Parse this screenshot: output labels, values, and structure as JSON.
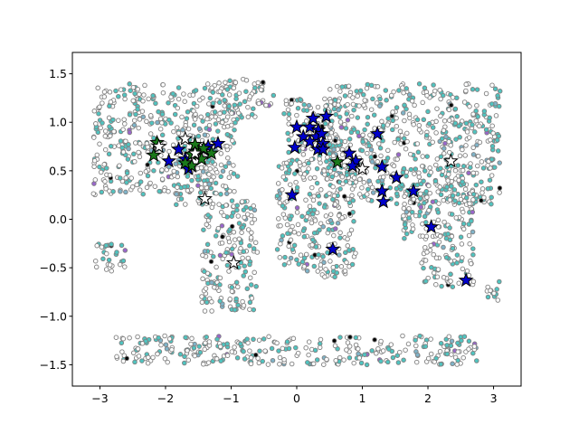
{
  "chart_data": {
    "type": "scatter",
    "title": "",
    "xlabel": "",
    "ylabel": "",
    "xlim": [
      -3.42,
      3.42
    ],
    "ylim": [
      -1.72,
      1.72
    ],
    "xticks": [
      -3,
      -2,
      -1,
      0,
      1,
      2,
      3
    ],
    "yticks": [
      -1.5,
      -1.0,
      -0.5,
      0.0,
      0.5,
      1.0,
      1.5
    ],
    "xtick_labels": [
      "−3",
      "−2",
      "−1",
      "0",
      "1",
      "2",
      "3"
    ],
    "ytick_labels": [
      "−1.5",
      "−1.0",
      "−0.5",
      "0.0",
      "0.5",
      "1.0",
      "1.5"
    ],
    "grid": false,
    "legend": "none",
    "background_points": {
      "marker": "circle",
      "edge_color": "#808080",
      "fill_colors": [
        "#ffffff",
        "#4fc4c0",
        "#7fb3c8",
        "#9966cc",
        "#000000"
      ],
      "regions_lon_lat": [
        {
          "name": "north-america",
          "lon": [
            -3.1,
            -0.9
          ],
          "lat": [
            0.25,
            1.4
          ]
        },
        {
          "name": "greenland",
          "lon": [
            -1.3,
            -0.35
          ],
          "lat": [
            1.05,
            1.45
          ]
        },
        {
          "name": "central-america",
          "lon": [
            -1.9,
            -1.3
          ],
          "lat": [
            0.15,
            0.55
          ]
        },
        {
          "name": "south-america",
          "lon": [
            -1.45,
            -0.6
          ],
          "lat": [
            -0.95,
            0.2
          ]
        },
        {
          "name": "europe",
          "lon": [
            -0.2,
            0.7
          ],
          "lat": [
            0.65,
            1.25
          ]
        },
        {
          "name": "africa",
          "lon": [
            -0.3,
            0.9
          ],
          "lat": [
            -0.6,
            0.65
          ]
        },
        {
          "name": "asia",
          "lon": [
            0.5,
            3.1
          ],
          "lat": [
            0.15,
            1.4
          ]
        },
        {
          "name": "southeast-asia",
          "lon": [
            1.6,
            2.7
          ],
          "lat": [
            -0.2,
            0.4
          ]
        },
        {
          "name": "australia",
          "lon": [
            1.9,
            2.7
          ],
          "lat": [
            -0.7,
            -0.15
          ]
        },
        {
          "name": "new-zealand",
          "lon": [
            2.9,
            3.1
          ],
          "lat": [
            -0.85,
            -0.6
          ]
        },
        {
          "name": "pacific-islands",
          "lon": [
            -3.1,
            -2.6
          ],
          "lat": [
            -0.55,
            -0.25
          ]
        },
        {
          "name": "antarctica",
          "lon": [
            -2.8,
            2.8
          ],
          "lat": [
            -1.5,
            -1.2
          ]
        }
      ]
    },
    "series": [
      {
        "marker": "star",
        "color": "#0000cc",
        "x": [
          0.0,
          0.2,
          0.33,
          0.45,
          0.25,
          0.1,
          0.3,
          0.38,
          0.4,
          0.2,
          0.32,
          -0.03,
          0.4,
          0.8,
          0.9,
          0.85,
          1.23,
          1.3,
          1.52,
          1.3,
          1.32,
          1.78,
          2.05,
          0.55,
          2.58,
          -0.07,
          -1.42,
          -1.35,
          -1.2,
          -1.55,
          -1.7,
          -1.8,
          -1.95,
          -1.65
        ],
        "y": [
          0.95,
          0.95,
          0.92,
          1.06,
          1.04,
          0.85,
          0.85,
          0.88,
          0.78,
          0.8,
          0.72,
          0.74,
          0.72,
          0.68,
          0.6,
          0.55,
          0.88,
          0.54,
          0.43,
          0.29,
          0.18,
          0.29,
          -0.08,
          -0.31,
          -0.63,
          0.25,
          0.72,
          0.75,
          0.78,
          0.7,
          0.62,
          0.72,
          0.6,
          0.52
        ]
      },
      {
        "marker": "star",
        "color": "#1a7a1a",
        "x": [
          -2.13,
          -2.18,
          -1.6,
          -1.5,
          -1.45,
          -1.6,
          -1.3,
          -1.42,
          -1.55,
          -1.7,
          0.62
        ],
        "y": [
          0.79,
          0.66,
          0.67,
          0.72,
          0.62,
          0.55,
          0.68,
          0.73,
          0.77,
          0.58,
          0.59
        ]
      },
      {
        "marker": "star",
        "color": "#ffffff",
        "x": [
          2.35,
          1.0,
          -0.96,
          -1.4,
          -2.1,
          -1.7,
          -1.55
        ],
        "y": [
          0.6,
          0.52,
          -0.45,
          0.21,
          0.75,
          0.83,
          0.68
        ]
      }
    ]
  }
}
